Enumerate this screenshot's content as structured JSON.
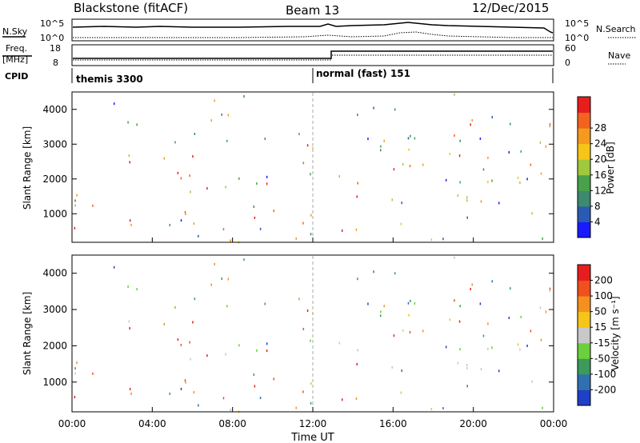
{
  "header": {
    "station": "Blackstone (fitACF)",
    "beam": "Beam 13",
    "date": "12/Dec/2015"
  },
  "top_panels": {
    "nsky_label": "N.Sky",
    "nsearch_label": "N.Search",
    "count_ticks": [
      "10^5",
      "10^0"
    ],
    "freq_label_1": "Freq.",
    "freq_label_2": "[MHz]",
    "freq_ticks": [
      "18",
      "8"
    ],
    "nave_label": "Nave",
    "nave_ticks": [
      "60",
      "0"
    ],
    "cpid_label": "CPID",
    "cpid_programs": [
      {
        "name": "themis 3300",
        "start_hour": 0
      },
      {
        "name": "normal (fast) 151",
        "start_hour": 12.0
      }
    ]
  },
  "chart_data": [
    {
      "type": "heatmap",
      "name": "power",
      "ylabel": "Slant Range [km]",
      "xlabel": "Time UT",
      "x_range_hours": [
        0,
        24
      ],
      "y_range_km": [
        180,
        4500
      ],
      "x_tick_labels": [
        "00:00",
        "04:00",
        "08:00",
        "12:00",
        "16:00",
        "20:00",
        "00:00"
      ],
      "y_tick_labels": [
        "1000",
        "2000",
        "3000",
        "4000"
      ],
      "colorbar_label": "Power [dB]",
      "colorbar_ticks": [
        "4",
        "8",
        "12",
        "16",
        "20",
        "24",
        "28"
      ],
      "colorbar_colors": [
        "#1a1aff",
        "#2a5ab4",
        "#3d8a6e",
        "#49a14a",
        "#a0c83c",
        "#f5c518",
        "#f59a1e",
        "#f2641e",
        "#e61e1e"
      ],
      "vertical_marker_hour": 12.0
    },
    {
      "type": "heatmap",
      "name": "velocity",
      "ylabel": "Slant Range [km]",
      "xlabel": "Time UT",
      "x_range_hours": [
        0,
        24
      ],
      "y_range_km": [
        180,
        4500
      ],
      "x_tick_labels": [
        "00:00",
        "04:00",
        "08:00",
        "12:00",
        "16:00",
        "20:00",
        "00:00"
      ],
      "y_tick_labels": [
        "1000",
        "2000",
        "3000",
        "4000"
      ],
      "colorbar_label": "Velocity [m s⁻¹]",
      "colorbar_ticks": [
        "200",
        "100",
        "50",
        "15",
        "-15",
        "-50",
        "-100",
        "-200"
      ],
      "colorbar_colors": [
        "#2040c8",
        "#3070b0",
        "#3c9a5a",
        "#6ccf3c",
        "#c8c8c8",
        "#f5c518",
        "#f5901e",
        "#f0501e",
        "#e61e1e"
      ],
      "vertical_marker_hour": 12.0
    }
  ],
  "colors": {
    "ground_scatter": "#c8c8c8",
    "axis": "#000000"
  }
}
